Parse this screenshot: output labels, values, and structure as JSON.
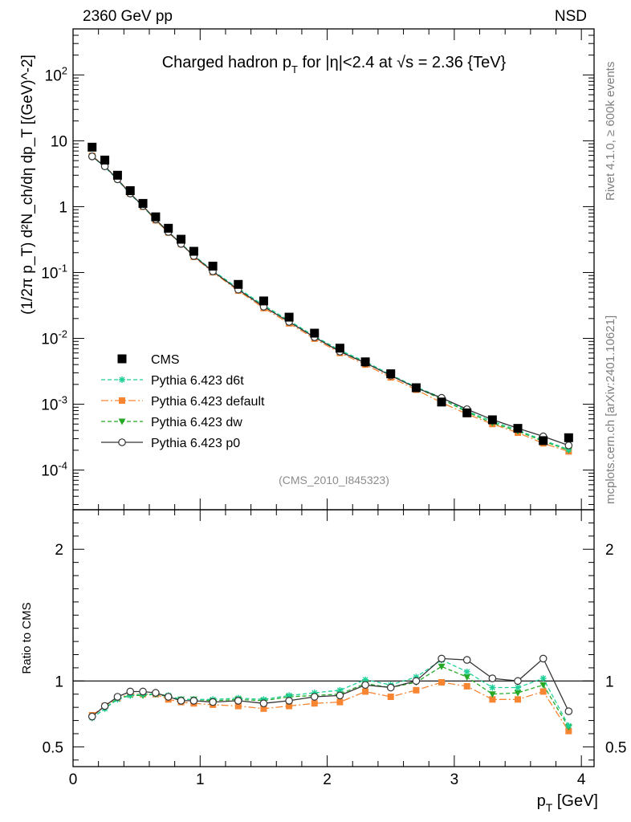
{
  "header": {
    "left": "2360 GeV pp",
    "right": "NSD",
    "side_top": "Rivet 4.1.0, ≥ 600k events",
    "side_bottom": "mcplots.cern.ch [arXiv:2401.10621]"
  },
  "chart_data": [
    {
      "type": "scatter",
      "panel": "main",
      "title": "Charged hadron p_T for |η|<2.4 at √s = 2.36 {TeV}",
      "title_parts": {
        "a": "Charged hadron p",
        "sub": "T",
        "b": " for |η|<2.4 at √s = 2.36 {TeV}"
      },
      "ylabel": "(1/2π p_T) d²N_ch/dη dp_T [(GeV)^-2]",
      "yscale": "log",
      "xlim": [
        0,
        4.1
      ],
      "ylim": [
        2.5e-05,
        500
      ],
      "y_tick_labels": [
        "10^-4",
        "10^-3",
        "10^-2",
        "10^-1",
        "1",
        "10",
        "10^2"
      ],
      "annotation": "(CMS_2010_I845323)",
      "x": [
        0.15,
        0.25,
        0.35,
        0.45,
        0.55,
        0.65,
        0.75,
        0.85,
        0.95,
        1.1,
        1.3,
        1.5,
        1.7,
        1.9,
        2.1,
        2.3,
        2.5,
        2.7,
        2.9,
        3.1,
        3.3,
        3.5,
        3.7,
        3.9
      ],
      "series": [
        {
          "name": "CMS",
          "legend": "CMS",
          "color": "#000000",
          "style": "data",
          "values": [
            8.0,
            5.1,
            3.0,
            1.75,
            1.12,
            0.7,
            0.47,
            0.32,
            0.21,
            0.125,
            0.066,
            0.037,
            0.021,
            0.012,
            0.0071,
            0.0044,
            0.0029,
            0.00178,
            0.00108,
            0.00074,
            0.00058,
            0.00043,
            0.00028,
            0.00031
          ]
        },
        {
          "name": "d6t",
          "legend": "Pythia 6.423 d6t",
          "color": "#1ed098",
          "style": "d6t",
          "values": [
            5.75,
            4.0,
            2.55,
            1.56,
            1.0,
            0.635,
            0.413,
            0.275,
            0.182,
            0.107,
            0.0575,
            0.0318,
            0.0186,
            0.0108,
            0.0066,
            0.00444,
            0.0028,
            0.00183,
            0.00126,
            0.00079,
            0.00055,
            0.000405,
            0.000285,
            0.000205
          ]
        },
        {
          "name": "default",
          "legend": "Pythia 6.423 default",
          "color": "#f78532",
          "style": "default",
          "values": [
            5.9,
            4.15,
            2.62,
            1.58,
            1.0,
            0.62,
            0.405,
            0.272,
            0.173,
            0.101,
            0.053,
            0.0288,
            0.0169,
            0.0099,
            0.006,
            0.004,
            0.00255,
            0.00166,
            0.00106,
            0.00071,
            0.0005,
            0.00037,
            0.000255,
            0.000192
          ]
        },
        {
          "name": "dw",
          "legend": "Pythia 6.423 dw",
          "color": "#26a926",
          "style": "dw",
          "values": [
            5.75,
            4.05,
            2.6,
            1.56,
            1.0,
            0.63,
            0.415,
            0.275,
            0.18,
            0.106,
            0.0568,
            0.0314,
            0.0184,
            0.0107,
            0.0064,
            0.0043,
            0.00275,
            0.00178,
            0.0012,
            0.00076,
            0.00052,
            0.00039,
            0.000275,
            0.0002
          ]
        },
        {
          "name": "p0",
          "legend": "Pythia 6.423 p0",
          "color": "#333333",
          "style": "p0",
          "values": [
            5.8,
            4.1,
            2.6,
            1.58,
            1.02,
            0.64,
            0.413,
            0.272,
            0.178,
            0.104,
            0.055,
            0.0303,
            0.0178,
            0.0104,
            0.0063,
            0.00424,
            0.00273,
            0.00177,
            0.00125,
            0.00084,
            0.000583,
            0.000432,
            0.000325,
            0.000237
          ]
        }
      ]
    },
    {
      "type": "line",
      "panel": "ratio",
      "ylabel": "Ratio to CMS",
      "xlabel": "p_T [GeV]",
      "xlabel_parts": {
        "a": "p",
        "sub": "T",
        "b": " [GeV]"
      },
      "xlim": [
        0,
        4.1
      ],
      "ylim": [
        0.35,
        2.3
      ],
      "x_tick_labels": [
        "0",
        "1",
        "2",
        "3",
        "4"
      ],
      "y_tick_labels": [
        "0.5",
        "1",
        "2"
      ],
      "reference_line": 1,
      "x": [
        0.15,
        0.25,
        0.35,
        0.45,
        0.55,
        0.65,
        0.75,
        0.85,
        0.95,
        1.1,
        1.3,
        1.5,
        1.7,
        1.9,
        2.1,
        2.3,
        2.5,
        2.7,
        2.9,
        3.1,
        3.3,
        3.5,
        3.7,
        3.9
      ],
      "series": [
        {
          "name": "d6t",
          "color": "#1ed098",
          "style": "d6t",
          "values": [
            0.72,
            0.79,
            0.86,
            0.89,
            0.9,
            0.9,
            0.89,
            0.86,
            0.86,
            0.86,
            0.87,
            0.86,
            0.89,
            0.91,
            0.93,
            1.01,
            0.97,
            1.03,
            1.16,
            1.07,
            0.95,
            0.95,
            1.02,
            0.66
          ]
        },
        {
          "name": "default",
          "color": "#f78532",
          "style": "default",
          "values": [
            0.74,
            0.81,
            0.87,
            0.9,
            0.9,
            0.9,
            0.86,
            0.84,
            0.83,
            0.82,
            0.81,
            0.79,
            0.81,
            0.83,
            0.84,
            0.92,
            0.88,
            0.93,
            0.99,
            0.96,
            0.86,
            0.86,
            0.92,
            0.62
          ]
        },
        {
          "name": "dw",
          "color": "#26a926",
          "style": "dw",
          "values": [
            0.72,
            0.79,
            0.87,
            0.89,
            0.89,
            0.9,
            0.88,
            0.86,
            0.86,
            0.85,
            0.86,
            0.85,
            0.88,
            0.89,
            0.9,
            0.98,
            0.95,
            0.99,
            1.11,
            1.03,
            0.9,
            0.91,
            0.97,
            0.65
          ]
        },
        {
          "name": "p0",
          "color": "#333333",
          "style": "p0",
          "values": [
            0.73,
            0.81,
            0.88,
            0.92,
            0.92,
            0.91,
            0.88,
            0.85,
            0.85,
            0.84,
            0.85,
            0.83,
            0.85,
            0.88,
            0.89,
            0.97,
            0.95,
            1.0,
            1.17,
            1.16,
            1.02,
            1.0,
            1.17,
            0.77
          ]
        }
      ]
    }
  ]
}
